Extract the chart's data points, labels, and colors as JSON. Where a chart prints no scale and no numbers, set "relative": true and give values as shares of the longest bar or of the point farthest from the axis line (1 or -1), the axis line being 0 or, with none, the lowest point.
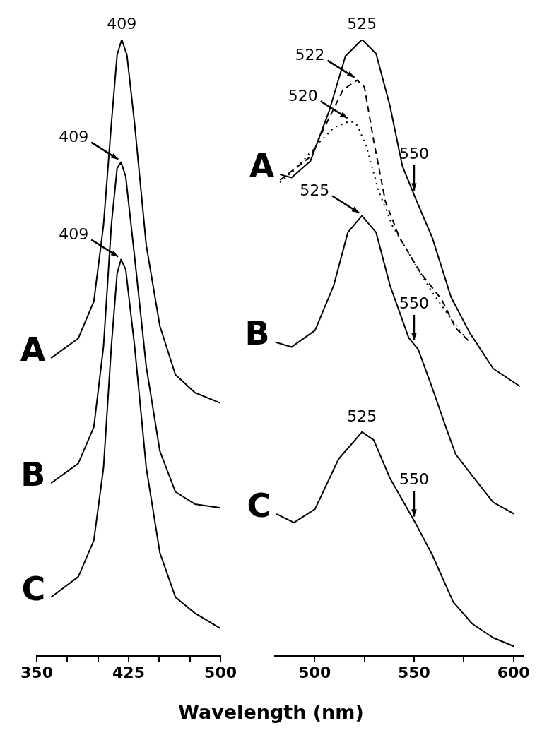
{
  "chart_data": [
    {
      "type": "line",
      "relative": true,
      "xlabel": "Wavelength (nm)",
      "xlim": [
        350,
        500
      ],
      "xticks": [
        350,
        {
          "value": 375,
          "label": null
        },
        {
          "value": 400,
          "label": null
        },
        425,
        {
          "value": 450,
          "label": null
        },
        {
          "value": 475,
          "label": null
        },
        500
      ],
      "grid": false,
      "legend": false,
      "marker": "none",
      "line_style": "solid",
      "series": [
        {
          "name": "A",
          "color": "#000000",
          "x": [
            361.7,
            383.9,
            396.6,
            404.5,
            410.9,
            415.6,
            419.4,
            423.6,
            429.9,
            439.4,
            450.5,
            463.2,
            479.1,
            500
          ],
          "values": [
            0.483,
            0.515,
            0.575,
            0.699,
            0.863,
            0.975,
            1.0,
            0.975,
            0.863,
            0.666,
            0.535,
            0.456,
            0.427,
            0.41
          ]
        },
        {
          "name": "B",
          "color": "#000000",
          "x": [
            361.7,
            383.9,
            396.6,
            404.5,
            410.9,
            415.6,
            418.8,
            422.6,
            429.9,
            439.4,
            450.5,
            463.2,
            479.1,
            500
          ],
          "values": [
            0.28,
            0.312,
            0.371,
            0.502,
            0.699,
            0.791,
            0.801,
            0.778,
            0.647,
            0.469,
            0.332,
            0.266,
            0.246,
            0.24
          ]
        },
        {
          "name": "C",
          "color": "#000000",
          "x": [
            361.7,
            383.9,
            396.6,
            404.5,
            410.9,
            415.6,
            418.8,
            422.6,
            429.9,
            439.4,
            450.5,
            463.2,
            479.1,
            500
          ],
          "values": [
            0.095,
            0.128,
            0.187,
            0.305,
            0.502,
            0.62,
            0.643,
            0.627,
            0.502,
            0.305,
            0.167,
            0.095,
            0.069,
            0.044
          ]
        }
      ],
      "annotations": [
        {
          "text": "409",
          "x": 419.4,
          "y": 1.0
        },
        {
          "text": "409",
          "x": 418.8,
          "y": 0.801
        },
        {
          "text": "409",
          "x": 418.8,
          "y": 0.643
        }
      ]
    },
    {
      "type": "line",
      "relative": true,
      "xlim": [
        480,
        605
      ],
      "xticks": [
        500,
        {
          "value": 525,
          "label": null
        },
        550,
        {
          "value": 575,
          "label": null
        },
        600
      ],
      "grid": false,
      "legend": false,
      "marker": "none",
      "series": [
        {
          "name": "A",
          "color": "#000000",
          "line_style": "solid",
          "x": [
            482.6,
            488.4,
            497.9,
            507.3,
            515.5,
            523.8,
            530.9,
            537.9,
            544.1,
            550.9,
            559.1,
            568.6,
            578,
            589.8,
            603.3
          ],
          "values": [
            0.781,
            0.776,
            0.803,
            0.884,
            0.973,
            1.0,
            0.977,
            0.892,
            0.795,
            0.741,
            0.679,
            0.582,
            0.524,
            0.466,
            0.437
          ]
        },
        {
          "color": "#000000",
          "line_style": "dashed",
          "x": [
            482.6,
            497.9,
            506.1,
            514.4,
            521.4,
            525,
            529.7,
            535.6,
            542.6,
            553.3,
            563.9,
            570.9,
            578
          ],
          "values": [
            0.772,
            0.81,
            0.865,
            0.919,
            0.934,
            0.923,
            0.836,
            0.737,
            0.679,
            0.621,
            0.578,
            0.532,
            0.509
          ]
        },
        {
          "color": "#000000",
          "line_style": "dotted",
          "x": [
            482.6,
            492,
            500.2,
            509.6,
            517.9,
            521.4,
            526.1,
            532,
            539.1,
            549.7,
            559.1,
            568.6,
            576.8
          ],
          "values": [
            0.768,
            0.795,
            0.826,
            0.857,
            0.868,
            0.861,
            0.826,
            0.756,
            0.698,
            0.64,
            0.59,
            0.547,
            0.512
          ]
        },
        {
          "name": "B",
          "color": "#000000",
          "line_style": "solid",
          "x": [
            480.2,
            488.4,
            500.2,
            509.6,
            516.7,
            523.8,
            530.9,
            537.9,
            547.3,
            552.1,
            559.1,
            566.2,
            570.9,
            580.3,
            589.8,
            600.4
          ],
          "values": [
            0.509,
            0.501,
            0.528,
            0.601,
            0.687,
            0.714,
            0.687,
            0.601,
            0.516,
            0.497,
            0.435,
            0.369,
            0.327,
            0.288,
            0.249,
            0.23
          ]
        },
        {
          "name": "C",
          "color": "#000000",
          "line_style": "solid",
          "x": [
            480.8,
            489.6,
            500.2,
            512,
            523.8,
            529.7,
            537.9,
            550.9,
            559.1,
            569.7,
            579.2,
            589.8,
            600.4
          ],
          "values": [
            0.23,
            0.216,
            0.238,
            0.319,
            0.363,
            0.35,
            0.288,
            0.214,
            0.164,
            0.087,
            0.052,
            0.029,
            0.015
          ]
        }
      ],
      "annotations": [
        {
          "text": "525",
          "x": 523.8,
          "y": 1.0
        },
        {
          "text": "522",
          "x": 521.4,
          "y": 0.934
        },
        {
          "text": "520",
          "x": 517.9,
          "y": 0.868
        },
        {
          "text": "550",
          "x": 550,
          "y": 0.748
        },
        {
          "text": "525",
          "x": 523.8,
          "y": 0.714
        },
        {
          "text": "550",
          "x": 550,
          "y": 0.505
        },
        {
          "text": "525",
          "x": 523.8,
          "y": 0.363
        },
        {
          "text": "550",
          "x": 550,
          "y": 0.219
        }
      ]
    }
  ]
}
